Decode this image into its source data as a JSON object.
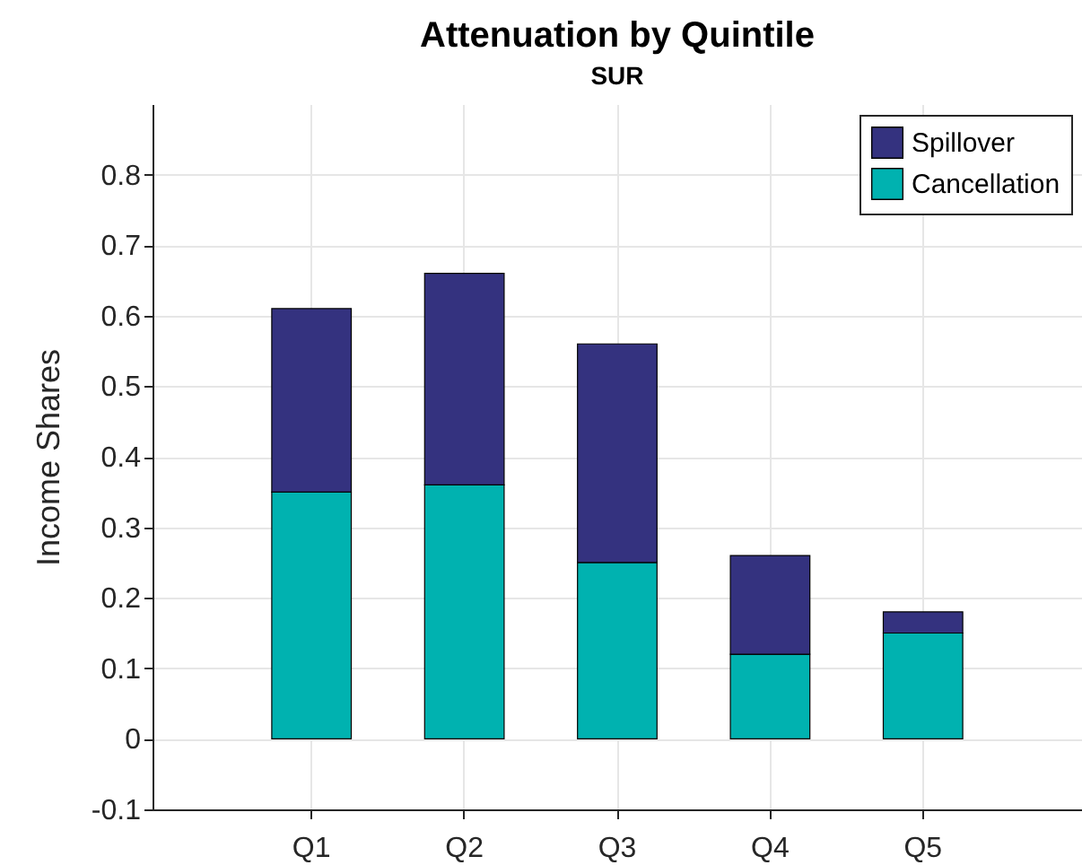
{
  "chart_data": {
    "type": "bar",
    "title": "Attenuation by Quintile",
    "subtitle": "SUR",
    "ylabel": "Income Shares",
    "categories": [
      "Q1",
      "Q2",
      "Q3",
      "Q4",
      "Q5"
    ],
    "series": [
      {
        "name": "Cancellation",
        "color": "#00b2b0",
        "values": [
          0.35,
          0.36,
          0.25,
          0.12,
          0.15
        ]
      },
      {
        "name": "Spillover",
        "color": "#34327f",
        "values": [
          0.26,
          0.3,
          0.31,
          0.14,
          0.03
        ]
      }
    ],
    "stacked": true,
    "ylim": [
      -0.1,
      0.9
    ],
    "yticks": [
      -0.1,
      0,
      0.1,
      0.2,
      0.3,
      0.4,
      0.5,
      0.6,
      0.7,
      0.8
    ],
    "grid": true,
    "legend": "top right"
  }
}
